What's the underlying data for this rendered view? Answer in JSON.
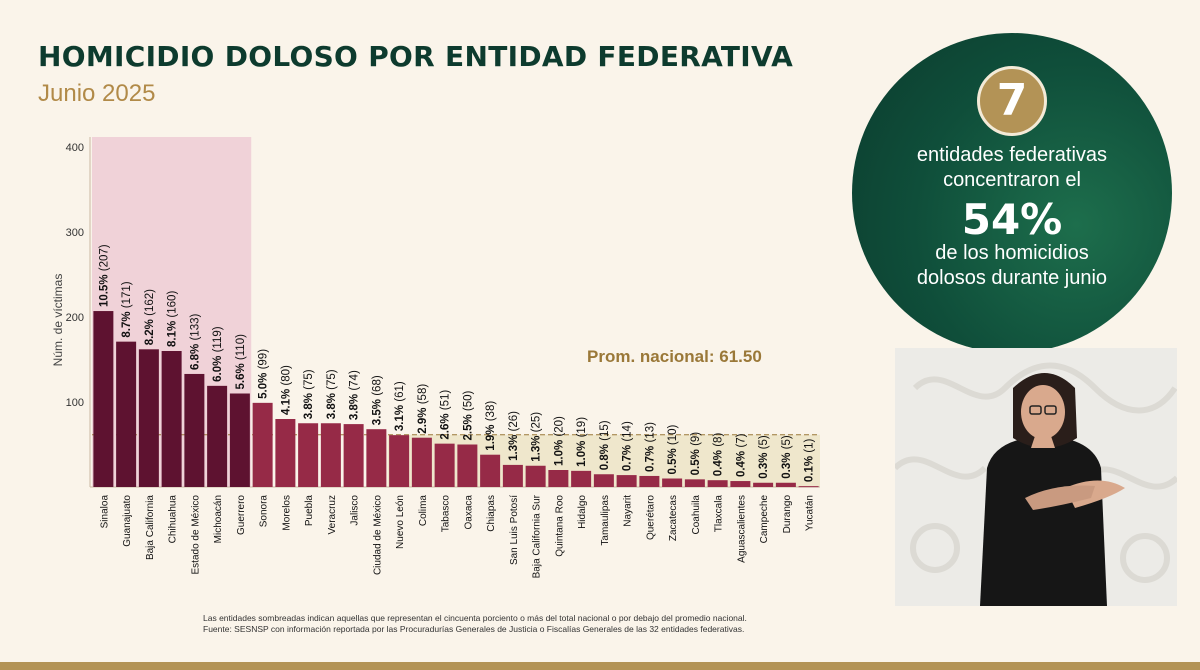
{
  "header": {
    "title": "HOMICIDIO DOLOSO POR ENTIDAD FEDERATIVA",
    "subtitle": "Junio 2025"
  },
  "chart_data": {
    "type": "bar",
    "ylabel": "Núm. de víctimas",
    "ylim": [
      0,
      400
    ],
    "yticks": [
      100,
      200,
      300,
      400
    ],
    "categories": [
      "Sinaloa",
      "Guanajuato",
      "Baja California",
      "Chihuahua",
      "Estado de México",
      "Michoacán",
      "Guerrero",
      "Sonora",
      "Morelos",
      "Puebla",
      "Veracruz",
      "Jalisco",
      "Ciudad de México",
      "Nuevo León",
      "Colima",
      "Tabasco",
      "Oaxaca",
      "Chiapas",
      "San Luis Potosí",
      "Baja California Sur",
      "Quintana Roo",
      "Hidalgo",
      "Tamaulipas",
      "Nayarit",
      "Querétaro",
      "Zacatecas",
      "Coahuila",
      "Tlaxcala",
      "Aguascalientes",
      "Campeche",
      "Durango",
      "Yucatán"
    ],
    "values": [
      207,
      171,
      162,
      160,
      133,
      119,
      110,
      99,
      80,
      75,
      75,
      74,
      68,
      61,
      58,
      51,
      50,
      38,
      26,
      25,
      20,
      19,
      15,
      14,
      13,
      10,
      9,
      8,
      7,
      5,
      5,
      1
    ],
    "percent_labels": [
      "10.5%",
      "8.7%",
      "8.2%",
      "8.1%",
      "6.8%",
      "6.0%",
      "5.6%",
      "5.0%",
      "4.1%",
      "3.8%",
      "3.8%",
      "3.8%",
      "3.5%",
      "3.1%",
      "2.9%",
      "2.6%",
      "2.5%",
      "1.9%",
      "1.3%",
      "1.3%",
      "1.0%",
      "1.0%",
      "0.8%",
      "0.7%",
      "0.7%",
      "0.5%",
      "0.5%",
      "0.4%",
      "0.4%",
      "0.3%",
      "0.3%",
      "0.1%"
    ],
    "count_labels": [
      "(207)",
      "(171)",
      "(162)",
      "(160)",
      "(133)",
      "(119)",
      "(110)",
      "(99)",
      "(80)",
      "(75)",
      "(75)",
      "(74)",
      "(68)",
      "(61)",
      "(58)",
      "(51)",
      "(50)",
      "(38)",
      "(26)",
      "(25)",
      "(20)",
      "(19)",
      "(15)",
      "(14)",
      "(13)",
      "(10)",
      "(9)",
      "(8)",
      "(7)",
      "(5)",
      "(5)",
      "(1)"
    ],
    "highlighted_top_count": 7,
    "average": 61.5,
    "average_label": "Prom. nacional: 61.50",
    "colors": {
      "top_bars": "#5e1230",
      "other_bars": "#962a47",
      "top_shade": "#f0d2d8",
      "below_avg_shade": "#efe7cc",
      "avg_line": "#9a7838"
    }
  },
  "callout": {
    "number": "7",
    "text_before": "entidades federativas concentraron el",
    "percent": "54%",
    "text_after": "de los homicidios dolosos durante junio"
  },
  "footnote": {
    "line1": "Las entidades sombreadas indican aquellas que representan el cincuenta porciento o más del total nacional o por debajo del promedio nacional.",
    "line2": "Fuente: SESNSP con información reportada por las Procuradurías Generales de Justicia o Fiscalías Generales de las 32 entidades federativas."
  }
}
